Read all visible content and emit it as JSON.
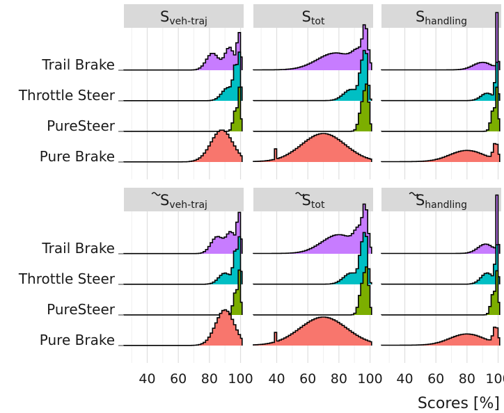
{
  "chart_data": {
    "type": "ridgeline-histogram",
    "xlabel": "Scores [%]",
    "xlim": [
      25,
      102
    ],
    "x_ticks": [
      "40",
      "60",
      "80",
      "100"
    ],
    "x_tick_values": [
      40,
      60,
      80,
      100
    ],
    "grid": "vertical major and minor lines",
    "legend": "none",
    "categories": [
      "Trail Brake",
      "Throttle Steer",
      "PureSteer",
      "Pure Brake"
    ],
    "colors": {
      "Trail Brake": "#c77cff",
      "Throttle Steer": "#00bfc4",
      "PureSteer": "#7cae00",
      "Pure Brake": "#f8766d"
    },
    "facet_titles": [
      {
        "base": "S",
        "sub": "veh-traj",
        "tilde": false
      },
      {
        "base": "S",
        "sub": "tot",
        "tilde": false
      },
      {
        "base": "S",
        "sub": "handling",
        "tilde": false
      },
      {
        "base": "S",
        "sub": "veh-traj",
        "tilde": true
      },
      {
        "base": "S",
        "sub": "tot",
        "tilde": true
      },
      {
        "base": "S",
        "sub": "handling",
        "tilde": true
      }
    ],
    "panels": [
      {
        "facet": "S veh-traj",
        "series": [
          {
            "name": "Trail Brake",
            "peaks": [
              [
                82,
                0.45,
                4
              ],
              [
                93,
                0.6,
                3
              ],
              [
                99,
                0.95,
                1.2
              ]
            ],
            "base": 0.005
          },
          {
            "name": "Throttle Steer",
            "peaks": [
              [
                92,
                0.35,
                4
              ],
              [
                97,
                0.85,
                1.5
              ],
              [
                99.5,
                1.0,
                0.8
              ]
            ],
            "base": 0.003
          },
          {
            "name": "PureSteer",
            "peaks": [
              [
                97,
                0.6,
                1.6
              ],
              [
                99.5,
                1.0,
                0.8
              ]
            ],
            "base": 0.002
          },
          {
            "name": "Pure Brake",
            "peaks": [
              [
                88,
                0.85,
                7
              ]
            ],
            "base": 0.003
          }
        ]
      },
      {
        "facet": "S tot",
        "series": [
          {
            "name": "Trail Brake",
            "peaks": [
              [
                78,
                0.45,
                12
              ],
              [
                93,
                0.35,
                4
              ],
              [
                97,
                0.9,
                1.6
              ]
            ],
            "base": 0.01
          },
          {
            "name": "Throttle Steer",
            "peaks": [
              [
                88,
                0.3,
                5
              ],
              [
                95,
                0.9,
                1.8
              ],
              [
                97.5,
                0.95,
                1.2
              ]
            ],
            "base": 0.005
          },
          {
            "name": "PureSteer",
            "peaks": [
              [
                95,
                0.7,
                2
              ],
              [
                98,
                1.0,
                1.5
              ]
            ],
            "base": 0.002
          },
          {
            "name": "Pure Brake",
            "peaks": [
              [
                70,
                0.75,
                14
              ]
            ],
            "base": 0.01,
            "spike": [
              39,
              0.35
            ]
          }
        ]
      },
      {
        "facet": "S handling",
        "series": [
          {
            "name": "Trail Brake",
            "peaks": [
              [
                90,
                0.2,
                6
              ],
              [
                99.5,
                1.6,
                0.6
              ]
            ],
            "base": 0.01
          },
          {
            "name": "Throttle Steer",
            "peaks": [
              [
                93,
                0.2,
                4
              ],
              [
                99,
                1.0,
                0.9
              ]
            ],
            "base": 0.005
          },
          {
            "name": "PureSteer",
            "peaks": [
              [
                97,
                0.6,
                1.6
              ],
              [
                99.5,
                1.0,
                0.8
              ]
            ],
            "base": 0.002
          },
          {
            "name": "Pure Brake",
            "peaks": [
              [
                80,
                0.3,
                11
              ],
              [
                98.5,
                0.45,
                1.5
              ]
            ],
            "base": 0.01
          }
        ]
      },
      {
        "facet": "S~ veh-traj",
        "series": [
          {
            "name": "Trail Brake",
            "peaks": [
              [
                85,
                0.45,
                4
              ],
              [
                94,
                0.55,
                3
              ],
              [
                99,
                1.0,
                1.2
              ]
            ],
            "base": 0.005
          },
          {
            "name": "Throttle Steer",
            "peaks": [
              [
                90,
                0.3,
                4
              ],
              [
                97,
                0.9,
                1.5
              ],
              [
                99.5,
                1.0,
                0.8
              ]
            ],
            "base": 0.003
          },
          {
            "name": "PureSteer",
            "peaks": [
              [
                97,
                0.65,
                1.6
              ],
              [
                99.5,
                1.0,
                0.8
              ]
            ],
            "base": 0.002
          },
          {
            "name": "Pure Brake",
            "peaks": [
              [
                90,
                0.95,
                6
              ]
            ],
            "base": 0.003
          }
        ]
      },
      {
        "facet": "S~ tot",
        "series": [
          {
            "name": "Trail Brake",
            "peaks": [
              [
                80,
                0.5,
                11
              ],
              [
                93,
                0.45,
                3
              ],
              [
                97,
                1.0,
                1.6
              ]
            ],
            "base": 0.01
          },
          {
            "name": "Throttle Steer",
            "peaks": [
              [
                88,
                0.3,
                5
              ],
              [
                95,
                0.95,
                1.8
              ],
              [
                97.5,
                0.95,
                1.2
              ]
            ],
            "base": 0.005
          },
          {
            "name": "PureSteer",
            "peaks": [
              [
                95,
                0.75,
                2
              ],
              [
                98,
                1.0,
                1.5
              ]
            ],
            "base": 0.002
          },
          {
            "name": "Pure Brake",
            "peaks": [
              [
                70,
                0.75,
                15
              ]
            ],
            "base": 0.01,
            "spike": [
              39,
              0.35
            ]
          }
        ]
      },
      {
        "facet": "S~ handling",
        "series": [
          {
            "name": "Trail Brake",
            "peaks": [
              [
                92,
                0.25,
                5
              ],
              [
                99.5,
                1.6,
                0.6
              ]
            ],
            "base": 0.01
          },
          {
            "name": "Throttle Steer",
            "peaks": [
              [
                93,
                0.3,
                4
              ],
              [
                99,
                1.0,
                0.9
              ]
            ],
            "base": 0.005
          },
          {
            "name": "PureSteer",
            "peaks": [
              [
                97,
                0.6,
                1.6
              ],
              [
                99.5,
                1.0,
                0.8
              ]
            ],
            "base": 0.002
          },
          {
            "name": "Pure Brake",
            "peaks": [
              [
                80,
                0.3,
                11
              ],
              [
                98.5,
                0.45,
                1.5
              ]
            ],
            "base": 0.01
          }
        ]
      }
    ]
  }
}
